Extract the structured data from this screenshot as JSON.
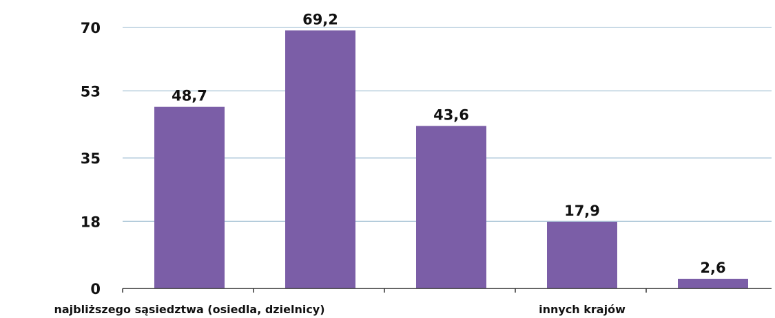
{
  "chart_data": {
    "type": "bar",
    "categories": [
      "najbliższego sąsiedztwa (osiedla, dzielnicy)",
      "",
      "",
      "innych krajów",
      ""
    ],
    "values": [
      48.7,
      69.2,
      43.6,
      17.9,
      2.6
    ],
    "value_labels": [
      "48,7",
      "69,2",
      "43,6",
      "17,9",
      "2,6"
    ],
    "title": "",
    "xlabel": "",
    "ylabel": "",
    "ylim": [
      0,
      70
    ],
    "yticks": [
      0,
      18,
      35,
      53,
      70
    ],
    "ytick_labels": [
      "0",
      "18",
      "35",
      "53",
      "70"
    ],
    "grid": true,
    "legend": "none",
    "bar_color": "#7b5ea7",
    "grid_color": "#a9c4d6"
  }
}
